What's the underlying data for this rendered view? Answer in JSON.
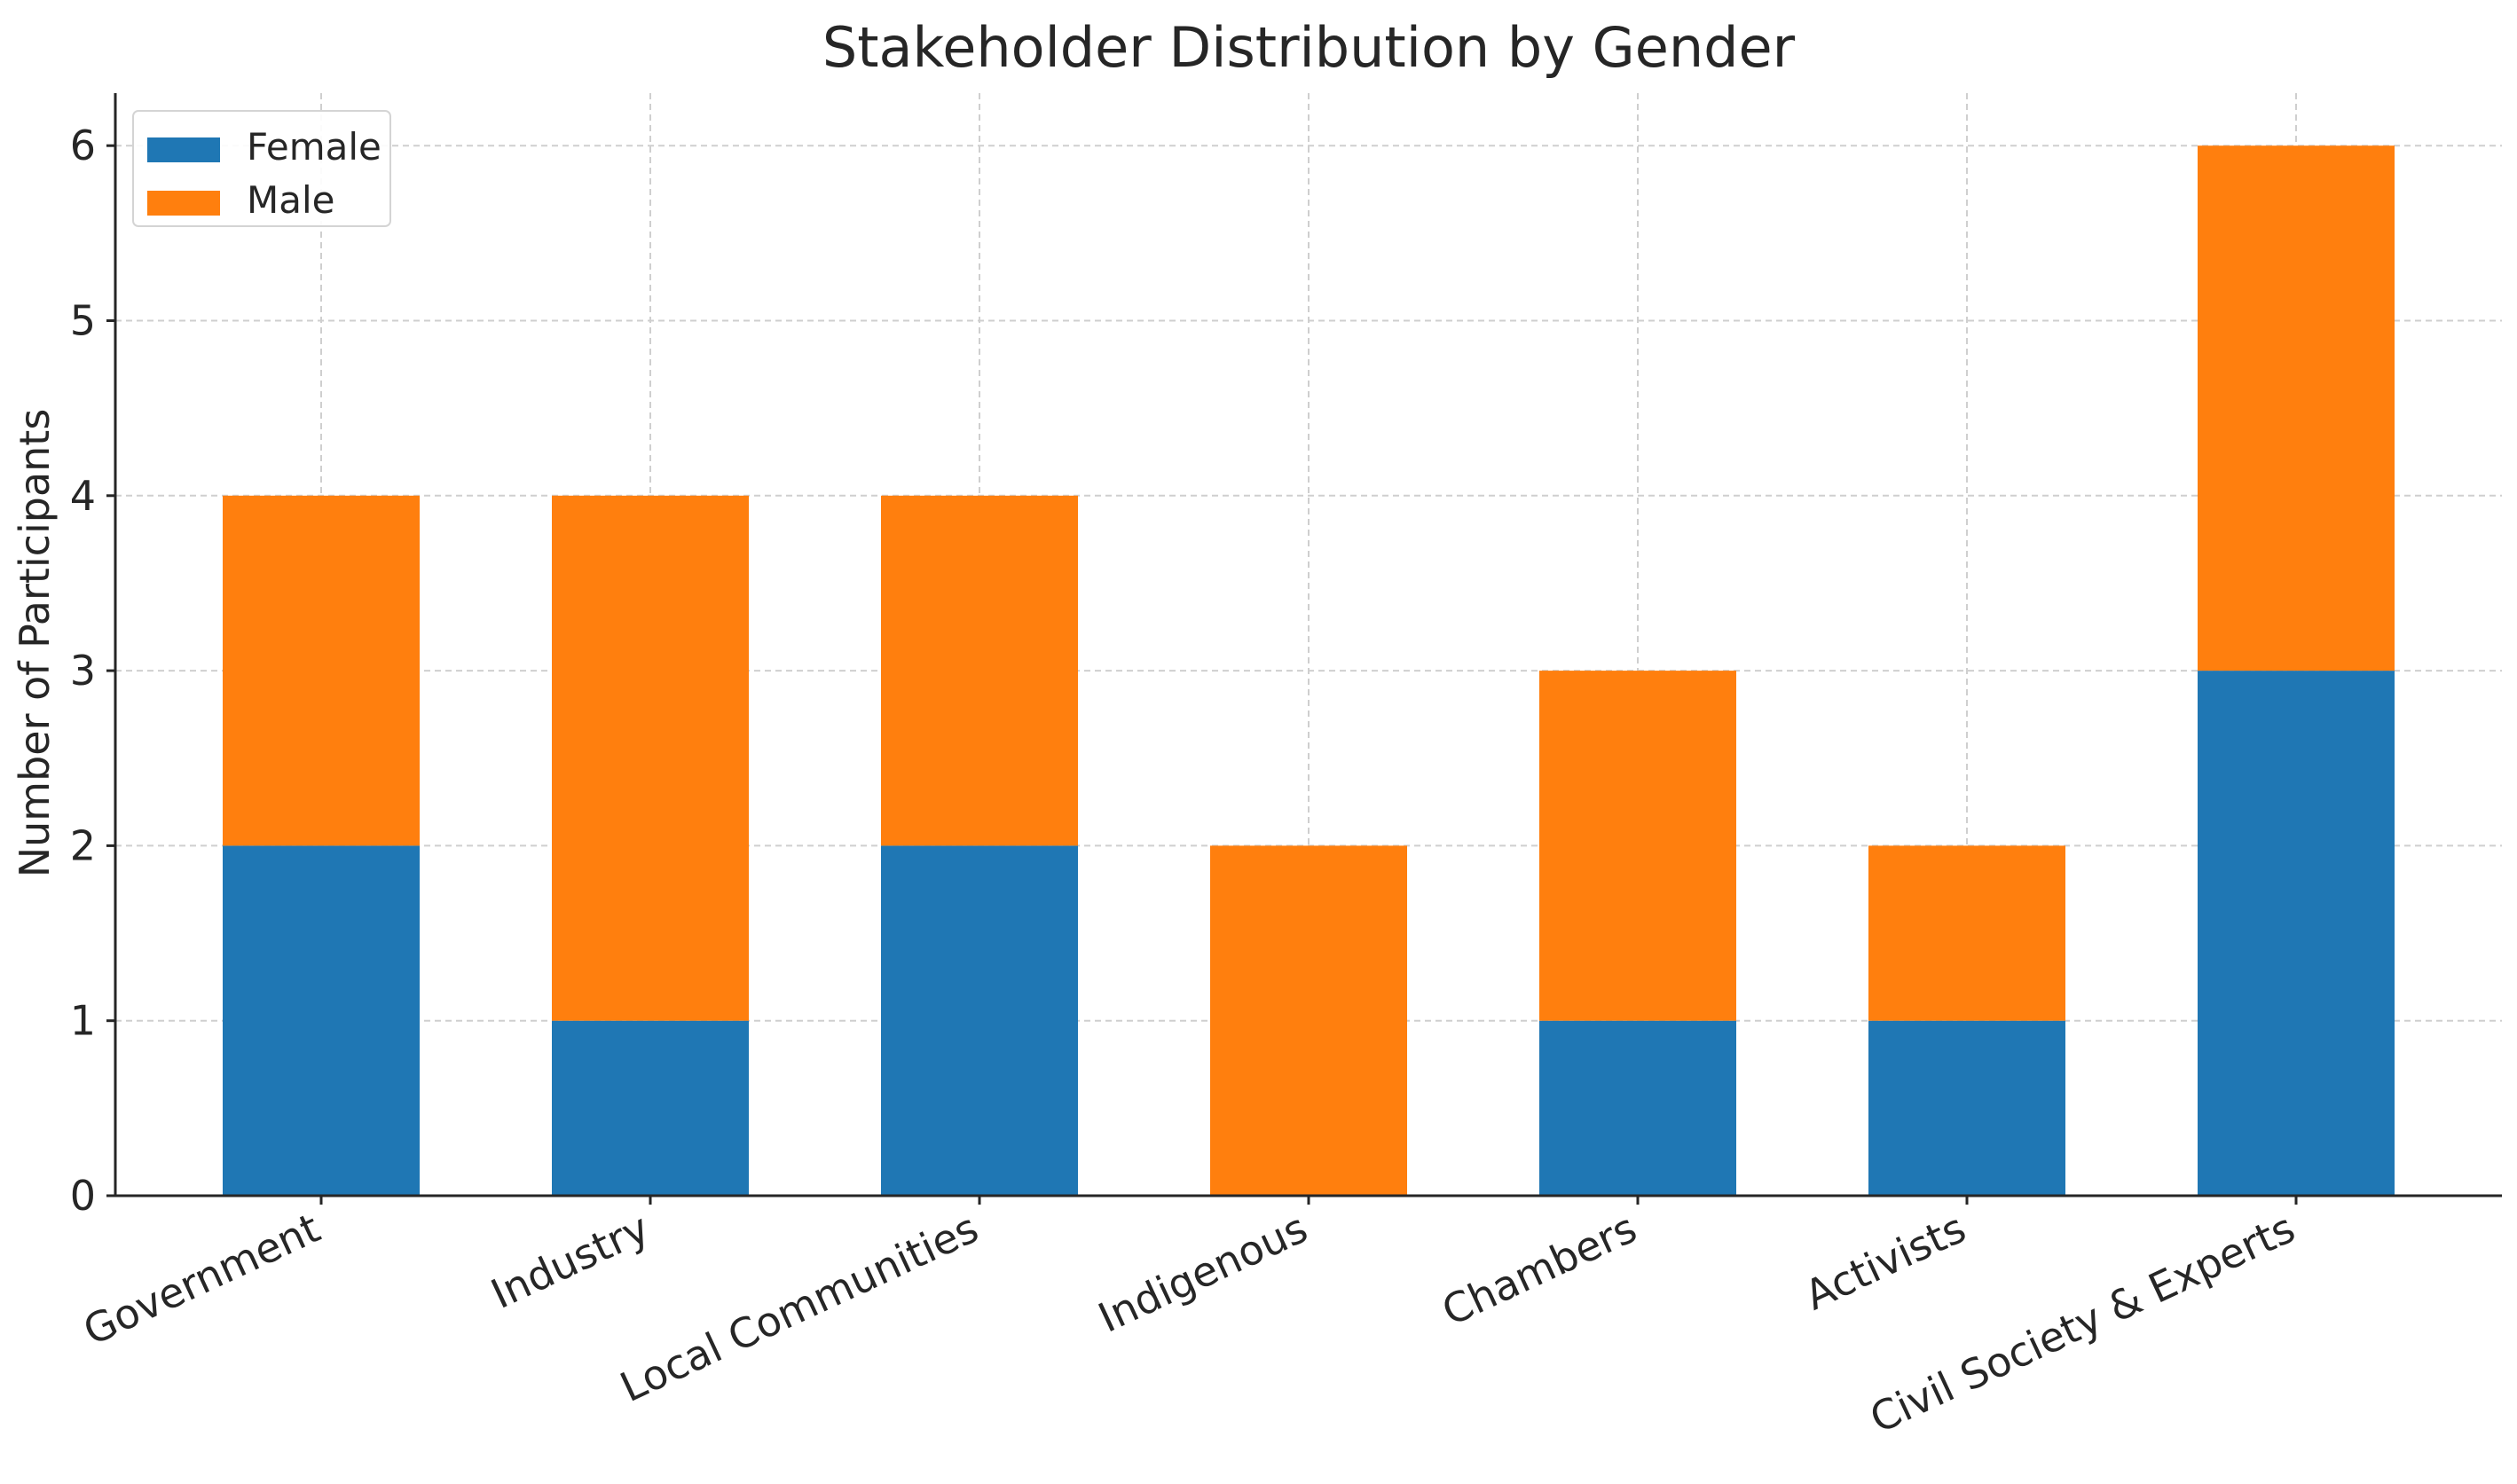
{
  "chart_data": {
    "type": "bar",
    "stacked": true,
    "title": "Stakeholder Distribution by Gender",
    "xlabel": "",
    "ylabel": "Number of Participants",
    "ylim": [
      0,
      6.3
    ],
    "yticks": [
      0,
      1,
      2,
      3,
      4,
      5,
      6
    ],
    "grid": true,
    "legend_position": "top-left",
    "categories": [
      "Government",
      "Industry",
      "Local Communities",
      "Indigenous",
      "Chambers",
      "Activists",
      "Civil Society & Experts"
    ],
    "series": [
      {
        "name": "Female",
        "color": "#1f77b4",
        "values": [
          2,
          1,
          2,
          0,
          1,
          1,
          3
        ]
      },
      {
        "name": "Male",
        "color": "#ff7f0e",
        "values": [
          2,
          3,
          2,
          2,
          2,
          1,
          3
        ]
      }
    ]
  }
}
